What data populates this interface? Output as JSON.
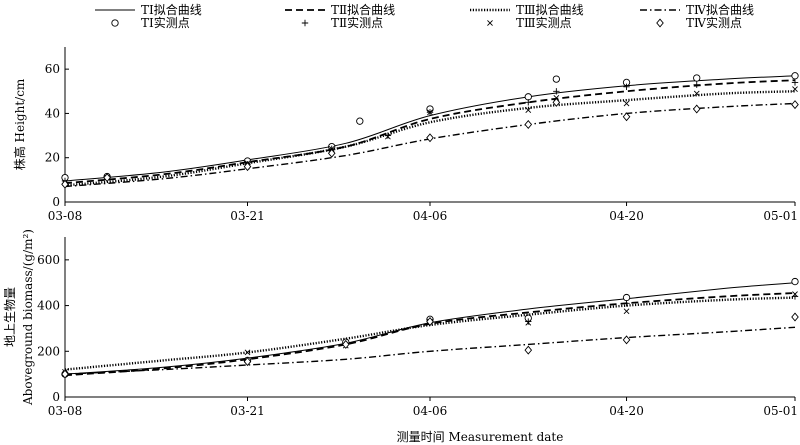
{
  "legend": {
    "lines": [
      {
        "label": "TⅠ拟合曲线",
        "series": "TI",
        "style": "solid"
      },
      {
        "label": "TⅡ拟合曲线",
        "series": "TII",
        "style": "dashed"
      },
      {
        "label": "TⅢ拟合曲线",
        "series": "TIII",
        "style": "dotted"
      },
      {
        "label": "TⅣ拟合曲线",
        "series": "TIV",
        "style": "dashdot"
      }
    ],
    "markers": [
      {
        "label": "TⅠ实测点",
        "series": "TI",
        "marker": "circle"
      },
      {
        "label": "TⅡ实测点",
        "series": "TII",
        "marker": "plus"
      },
      {
        "label": "TⅢ实测点",
        "series": "TIII",
        "marker": "x"
      },
      {
        "label": "TⅣ实测点",
        "series": "TIV",
        "marker": "diamond"
      }
    ]
  },
  "xlabel": "测量时间 Measurement date",
  "chart_data": [
    {
      "type": "line",
      "panel": "top",
      "ylabel": "株高 Height/cm",
      "xlim": [
        "03-08",
        "05-01"
      ],
      "xticks": [
        "03-08",
        "03-21",
        "04-06",
        "04-20",
        "05-01"
      ],
      "ylim": [
        0,
        70
      ],
      "yticks": [
        0,
        20,
        40,
        60
      ],
      "series": [
        {
          "key": "TI",
          "fit": {
            "x": [
              "03-08",
              "03-15",
              "03-21",
              "03-28",
              "04-06",
              "04-13",
              "04-20",
              "04-27",
              "05-01"
            ],
            "y": [
              9.5,
              13.5,
              19,
              26.5,
              39,
              47.5,
              52.5,
              55.5,
              57
            ]
          },
          "points": {
            "x": [
              "03-08",
              "03-11",
              "03-21",
              "03-27",
              "04-01",
              "04-06",
              "04-13",
              "04-15",
              "04-20",
              "04-25",
              "05-01"
            ],
            "y": [
              11,
              11.5,
              18.5,
              25,
              36.5,
              42,
              47.5,
              55.5,
              54,
              56,
              57
            ]
          }
        },
        {
          "key": "TII",
          "fit": {
            "x": [
              "03-08",
              "03-15",
              "03-21",
              "03-28",
              "04-06",
              "04-13",
              "04-20",
              "04-27",
              "05-01"
            ],
            "y": [
              8.5,
              12.5,
              18,
              25,
              37.5,
              45,
              50,
              53.5,
              55
            ]
          },
          "points": {
            "x": [
              "03-08",
              "03-11",
              "03-21",
              "03-27",
              "03-31",
              "04-06",
              "04-13",
              "04-15",
              "04-20",
              "04-25",
              "05-01"
            ],
            "y": [
              9.5,
              11,
              17,
              24,
              30,
              40.5,
              45,
              50,
              52,
              53,
              54
            ]
          }
        },
        {
          "key": "TIII",
          "fit": {
            "x": [
              "03-08",
              "03-15",
              "03-21",
              "03-28",
              "04-06",
              "04-13",
              "04-20",
              "04-27",
              "05-01"
            ],
            "y": [
              7.5,
              11.5,
              17.5,
              25,
              36,
              42.5,
              46,
              49,
              50
            ]
          },
          "points": {
            "x": [
              "03-08",
              "03-11",
              "03-21",
              "03-27",
              "03-31",
              "04-06",
              "04-13",
              "04-15",
              "04-20",
              "04-25",
              "05-01"
            ],
            "y": [
              8.5,
              11,
              17.5,
              24,
              29.5,
              40.5,
              41.5,
              47,
              44.5,
              49,
              51
            ]
          }
        },
        {
          "key": "TIV",
          "fit": {
            "x": [
              "03-08",
              "03-15",
              "03-21",
              "03-28",
              "04-06",
              "04-13",
              "04-20",
              "04-27",
              "05-01"
            ],
            "y": [
              7,
              10.5,
              15,
              21,
              28.5,
              35,
              40,
              43,
              44.5
            ]
          },
          "points": {
            "x": [
              "03-08",
              "03-11",
              "03-21",
              "03-27",
              "04-06",
              "04-13",
              "04-15",
              "04-20",
              "04-25",
              "05-01"
            ],
            "y": [
              8,
              11,
              16,
              22,
              29,
              35,
              45,
              38.5,
              42,
              44
            ]
          }
        }
      ]
    },
    {
      "type": "line",
      "panel": "bottom",
      "ylabel": "地上生物量",
      "ylabel2": "Aboveground biomass/(g/m²)",
      "xlim": [
        "03-08",
        "05-01"
      ],
      "xticks": [
        "03-08",
        "03-21",
        "04-06",
        "04-20",
        "05-01"
      ],
      "ylim": [
        0,
        700
      ],
      "yticks": [
        0,
        200,
        400,
        600
      ],
      "series": [
        {
          "key": "TI",
          "fit": {
            "x": [
              "03-08",
              "03-15",
              "03-21",
              "03-28",
              "04-06",
              "04-13",
              "04-20",
              "04-27",
              "05-01"
            ],
            "y": [
              100,
              130,
              170,
              235,
              325,
              385,
              430,
              475,
              500
            ]
          },
          "points": {
            "x": [
              "03-08",
              "03-21",
              "03-28",
              "04-06",
              "04-13",
              "04-20",
              "05-01"
            ],
            "y": [
              100,
              160,
              240,
              340,
              345,
              435,
              505
            ]
          }
        },
        {
          "key": "TII",
          "fit": {
            "x": [
              "03-08",
              "03-15",
              "03-21",
              "03-28",
              "04-06",
              "04-13",
              "04-20",
              "04-27",
              "05-01"
            ],
            "y": [
              95,
              125,
              165,
              230,
              320,
              370,
              410,
              440,
              455
            ]
          },
          "points": {
            "x": [
              "03-08",
              "03-21",
              "03-28",
              "04-06",
              "04-13",
              "04-20",
              "05-01"
            ],
            "y": [
              95,
              155,
              230,
              335,
              330,
              410,
              440
            ]
          }
        },
        {
          "key": "TIII",
          "fit": {
            "x": [
              "03-08",
              "03-15",
              "03-21",
              "03-28",
              "04-06",
              "04-13",
              "04-20",
              "04-27",
              "05-01"
            ],
            "y": [
              120,
              160,
              195,
              255,
              315,
              360,
              400,
              425,
              435
            ]
          },
          "points": {
            "x": [
              "03-08",
              "03-21",
              "03-28",
              "04-06",
              "04-13",
              "04-20",
              "05-01"
            ],
            "y": [
              110,
              195,
              225,
              330,
              325,
              375,
              450
            ]
          }
        },
        {
          "key": "TIV",
          "fit": {
            "x": [
              "03-08",
              "03-15",
              "03-21",
              "03-28",
              "04-06",
              "04-13",
              "04-20",
              "04-27",
              "05-01"
            ],
            "y": [
              100,
              120,
              140,
              165,
              200,
              230,
              260,
              285,
              305
            ]
          },
          "points": {
            "x": [
              "03-08",
              "03-21",
              "03-28",
              "04-06",
              "04-13",
              "04-20",
              "05-01"
            ],
            "y": [
              100,
              155,
              230,
              330,
              205,
              250,
              350
            ]
          }
        }
      ]
    }
  ]
}
